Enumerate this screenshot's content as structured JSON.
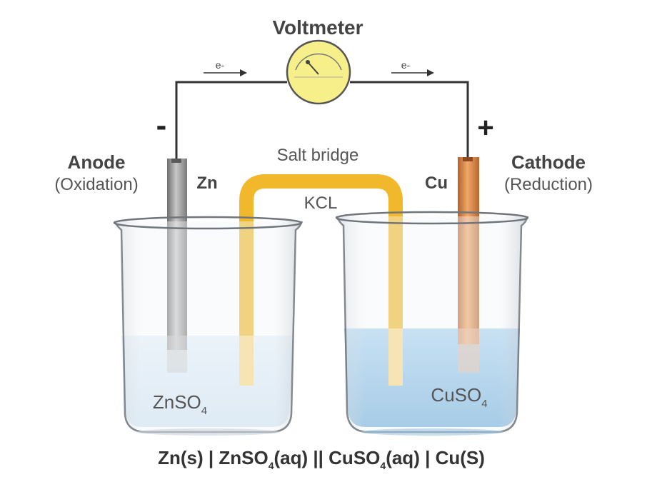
{
  "title": "Voltmeter",
  "electron_label": "e-",
  "negative_sign": "-",
  "positive_sign": "+",
  "anode": {
    "title": "Anode",
    "subtitle": "(Oxidation)",
    "metal": "Zn"
  },
  "cathode": {
    "title": "Cathode",
    "subtitle": "(Reduction)",
    "metal": "Cu"
  },
  "salt_bridge": {
    "title": "Salt bridge",
    "compound": "KCL"
  },
  "left_solution": {
    "formula": "ZnSO",
    "subscript": "4"
  },
  "right_solution": {
    "formula": "CuSO",
    "subscript": "4"
  },
  "cell_notation": {
    "part1": "Zn(s) |  ZnSO",
    "sub1": "4",
    "part2": "(aq) || CuSO",
    "sub2": "4",
    "part3": "(aq) | Cu(S)"
  },
  "colors": {
    "wire": "#333333",
    "voltmeter_face": "#f7f08a",
    "zinc_rod": "#9a9a9a",
    "copper_rod": "#d9823a",
    "salt_bridge": "#f0b82a",
    "left_solution": "#dcecf8",
    "right_solution": "#8fc3e8",
    "label_gray": "#555555"
  }
}
